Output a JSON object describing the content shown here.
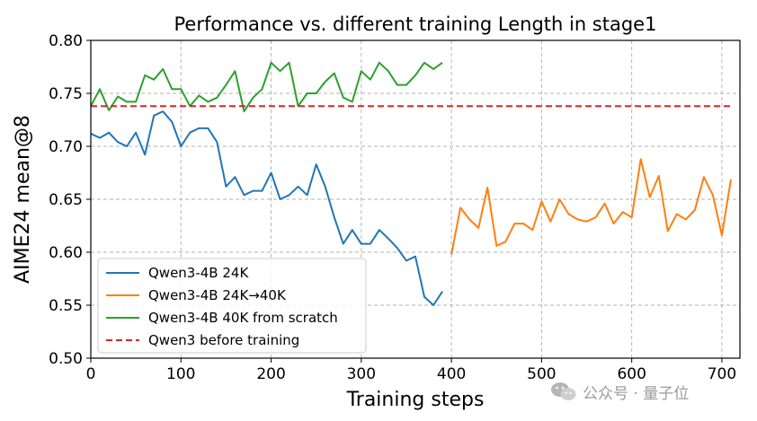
{
  "watermark": {
    "text": "公众号 · 量子位"
  },
  "chart_data": {
    "type": "line",
    "title": "Performance vs. different training Length in stage1",
    "xlabel": "Training steps",
    "ylabel": "AIME24 mean@8",
    "xlim": [
      0,
      720
    ],
    "ylim": [
      0.5,
      0.8
    ],
    "xticks": [
      0,
      100,
      200,
      300,
      400,
      500,
      600,
      700
    ],
    "yticks": [
      0.5,
      0.55,
      0.6,
      0.65,
      0.7,
      0.75,
      0.8
    ],
    "grid": true,
    "legend_position": "lower-left",
    "series": [
      {
        "name": "Qwen3-4B 24K",
        "color": "#1f77b4",
        "style": "solid",
        "x": [
          0,
          10,
          20,
          30,
          40,
          50,
          60,
          70,
          80,
          90,
          100,
          110,
          120,
          130,
          140,
          150,
          160,
          170,
          180,
          190,
          200,
          210,
          220,
          230,
          240,
          250,
          260,
          270,
          280,
          290,
          300,
          310,
          320,
          330,
          340,
          350,
          360,
          370,
          380,
          390
        ],
        "y": [
          0.712,
          0.708,
          0.713,
          0.704,
          0.7,
          0.713,
          0.692,
          0.729,
          0.733,
          0.723,
          0.7,
          0.713,
          0.717,
          0.717,
          0.704,
          0.662,
          0.671,
          0.654,
          0.658,
          0.658,
          0.675,
          0.65,
          0.654,
          0.662,
          0.654,
          0.683,
          0.662,
          0.633,
          0.608,
          0.621,
          0.608,
          0.608,
          0.621,
          0.613,
          0.604,
          0.592,
          0.596,
          0.558,
          0.55,
          0.563
        ]
      },
      {
        "name": "Qwen3-4B 24K→40K",
        "color": "#ff7f0e",
        "style": "solid",
        "x": [
          400,
          410,
          420,
          430,
          440,
          450,
          460,
          470,
          480,
          490,
          500,
          510,
          520,
          530,
          540,
          550,
          560,
          570,
          580,
          590,
          600,
          610,
          620,
          630,
          640,
          650,
          660,
          670,
          680,
          690,
          700,
          710
        ],
        "y": [
          0.598,
          0.642,
          0.631,
          0.623,
          0.661,
          0.606,
          0.61,
          0.627,
          0.627,
          0.621,
          0.648,
          0.629,
          0.65,
          0.636,
          0.631,
          0.629,
          0.633,
          0.646,
          0.627,
          0.638,
          0.633,
          0.688,
          0.652,
          0.672,
          0.62,
          0.636,
          0.631,
          0.64,
          0.671,
          0.654,
          0.616,
          0.669
        ]
      },
      {
        "name": "Qwen3-4B 40K from scratch",
        "color": "#2ca02c",
        "style": "solid",
        "x": [
          0,
          10,
          20,
          30,
          40,
          50,
          60,
          70,
          80,
          90,
          100,
          110,
          120,
          130,
          140,
          150,
          160,
          170,
          180,
          190,
          200,
          210,
          220,
          230,
          240,
          250,
          260,
          270,
          280,
          290,
          300,
          310,
          320,
          330,
          340,
          350,
          360,
          370,
          380,
          390
        ],
        "y": [
          0.738,
          0.754,
          0.734,
          0.747,
          0.742,
          0.742,
          0.767,
          0.763,
          0.773,
          0.754,
          0.754,
          0.738,
          0.748,
          0.742,
          0.746,
          0.758,
          0.771,
          0.733,
          0.746,
          0.754,
          0.779,
          0.771,
          0.779,
          0.738,
          0.75,
          0.75,
          0.761,
          0.769,
          0.746,
          0.742,
          0.771,
          0.763,
          0.779,
          0.771,
          0.758,
          0.758,
          0.767,
          0.779,
          0.773,
          0.779
        ]
      },
      {
        "name": "Qwen3 before training",
        "color": "#d62728",
        "style": "dashed",
        "x": [
          0,
          710
        ],
        "y": [
          0.738,
          0.738
        ]
      }
    ]
  }
}
